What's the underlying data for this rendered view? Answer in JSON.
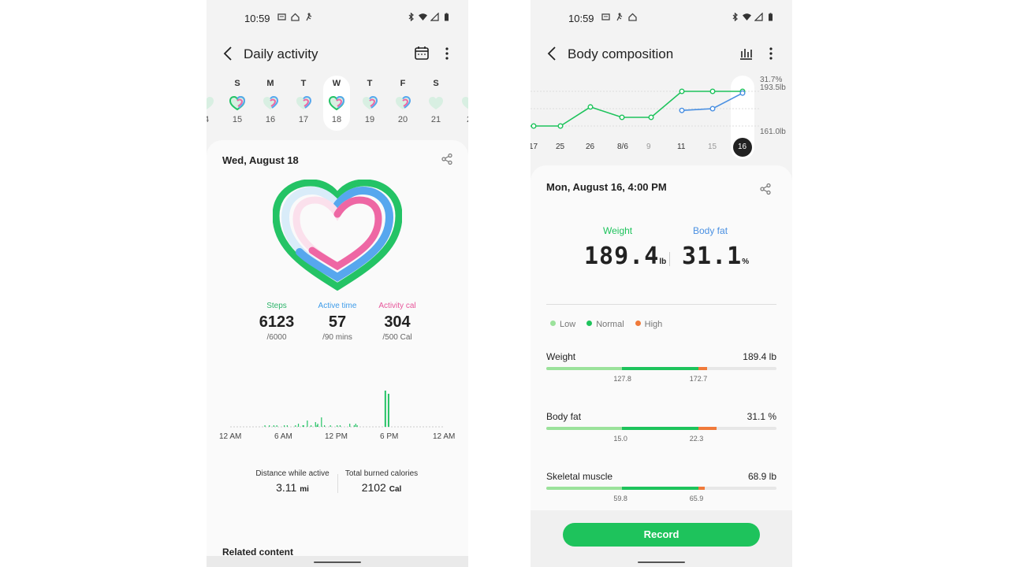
{
  "left": {
    "status": {
      "time": "10:59"
    },
    "app_bar": {
      "title": "Daily activity"
    },
    "week": [
      {
        "label": "",
        "num": "4"
      },
      {
        "label": "S",
        "num": "15"
      },
      {
        "label": "M",
        "num": "16"
      },
      {
        "label": "T",
        "num": "17"
      },
      {
        "label": "W",
        "num": "18"
      },
      {
        "label": "T",
        "num": "19"
      },
      {
        "label": "F",
        "num": "20"
      },
      {
        "label": "S",
        "num": "21"
      },
      {
        "label": "",
        "num": "2"
      }
    ],
    "date": "Wed, August 18",
    "metrics": {
      "steps": {
        "label": "Steps",
        "value": "6123",
        "goal": "/6000",
        "color": "#2db46a"
      },
      "active": {
        "label": "Active time",
        "value": "57",
        "goal": "/90 mins",
        "color": "#3d9be9"
      },
      "cal": {
        "label": "Activity cal",
        "value": "304",
        "goal": "/500 Cal",
        "color": "#e7559a"
      }
    },
    "axis": [
      "12 AM",
      "6 AM",
      "12 PM",
      "6 PM",
      "12 AM"
    ],
    "summary": {
      "distance": {
        "label": "Distance while active",
        "value": "3.11",
        "unit": "mi"
      },
      "calories": {
        "label": "Total burned calories",
        "value": "2102",
        "unit": "Cal"
      }
    },
    "related": "Related content",
    "hourly_bars": [
      0,
      0,
      0,
      0,
      0,
      0,
      0,
      0,
      0,
      0,
      0,
      0,
      0,
      0,
      0,
      0,
      0,
      0,
      0,
      0,
      0,
      0,
      0,
      0,
      0,
      0,
      0,
      0,
      0,
      0,
      0,
      0,
      0,
      0,
      0,
      0,
      0,
      0,
      0,
      0,
      0,
      0,
      0,
      0,
      0,
      0,
      1,
      0,
      0,
      0,
      0,
      0,
      1,
      0,
      0,
      0,
      0,
      0,
      1,
      0,
      0,
      0,
      1,
      0,
      0,
      0,
      0,
      0,
      0,
      0,
      0,
      0,
      1,
      0,
      0,
      0,
      1,
      0,
      0,
      0,
      0,
      0,
      0,
      0,
      0,
      0,
      0,
      1,
      0,
      0,
      0,
      2,
      0,
      0,
      0,
      0,
      0,
      1,
      1,
      0,
      0,
      0,
      0,
      4,
      0,
      0,
      0,
      0,
      1,
      0,
      0,
      0,
      0,
      0,
      3,
      0,
      1,
      2,
      0,
      0,
      0,
      0,
      6,
      0,
      0,
      0,
      1,
      0,
      0,
      0,
      0,
      0,
      0,
      0,
      1,
      0,
      0,
      0,
      0,
      0,
      0,
      0,
      0,
      1,
      0,
      0,
      0,
      1,
      0,
      0,
      0,
      0,
      0,
      0,
      0,
      0,
      0,
      0,
      0,
      0,
      2,
      0,
      0,
      0,
      0,
      0,
      1,
      0,
      2,
      0,
      1,
      0,
      0,
      0,
      0,
      0,
      0,
      0,
      0,
      0,
      0,
      0,
      0,
      0,
      0,
      0,
      0,
      0,
      0,
      0,
      0,
      0,
      0,
      0,
      0,
      0,
      0,
      0,
      0,
      0,
      0,
      0,
      0,
      0,
      0,
      0,
      0,
      0,
      0,
      0,
      0,
      0,
      0,
      0,
      0,
      0,
      0,
      0,
      0,
      0,
      0,
      0,
      0,
      0,
      0,
      0,
      0,
      0,
      0,
      0,
      0,
      0,
      0,
      0,
      0,
      0,
      0,
      0,
      0,
      0,
      0,
      0,
      0,
      0,
      0,
      0,
      0,
      0,
      0,
      0,
      0,
      0,
      0,
      0,
      0,
      0,
      0,
      0,
      0,
      0,
      0,
      0,
      0,
      0,
      0,
      0,
      0,
      0,
      0,
      0,
      0,
      0,
      0,
      0,
      0,
      0,
      0,
      0,
      0,
      0,
      0,
      0,
      0,
      0,
      0,
      0,
      0,
      0,
      0,
      0,
      0,
      0,
      0,
      0,
      0,
      0,
      0,
      0,
      0,
      0,
      0,
      0,
      0,
      0,
      0,
      0,
      0,
      0,
      0,
      0,
      0,
      0,
      0,
      0,
      0,
      0,
      0,
      0,
      0,
      0,
      0,
      0,
      0,
      0,
      0,
      0,
      0,
      0,
      0,
      0,
      0,
      0,
      0,
      0,
      0,
      0,
      0,
      0,
      0
    ],
    "peaks": [
      {
        "pos": 0.72,
        "h": 46
      },
      {
        "pos": 0.735,
        "h": 42
      }
    ]
  },
  "right": {
    "status": {
      "time": "10:59"
    },
    "app_bar": {
      "title": "Body composition"
    },
    "chart": {
      "x_labels": [
        "17",
        "25",
        "26",
        "8/6",
        "9",
        "11",
        "15",
        "16"
      ],
      "muted": [
        false,
        false,
        false,
        false,
        true,
        false,
        true,
        false
      ],
      "y_labels": [
        "31.7%",
        "193.5lb",
        "161.0lb"
      ],
      "weight_points": [
        0,
        0,
        0.55,
        0.25,
        0.25,
        1,
        1,
        1
      ],
      "fat_points": [
        null,
        null,
        null,
        null,
        null,
        0.45,
        0.5,
        0.95
      ],
      "green": "#1ec35c",
      "blue": "#4a90e2"
    },
    "date": "Mon, August 16, 4:00 PM",
    "weight": {
      "label": "Weight",
      "value": "189.4",
      "unit": "lb"
    },
    "body_fat": {
      "label": "Body fat",
      "value": "31.1",
      "unit": "%"
    },
    "legend": [
      {
        "label": "Low",
        "color": "#9be29b"
      },
      {
        "label": "Normal",
        "color": "#1ec35c"
      },
      {
        "label": "High",
        "color": "#f07a3a"
      }
    ],
    "rows": [
      {
        "name": "Weight",
        "value": "189.4 lb",
        "t1": "127.8",
        "t2": "172.7",
        "low": 0.33,
        "normal": 0.33,
        "high": 0.04
      },
      {
        "name": "Body fat",
        "value": "31.1 %",
        "t1": "15.0",
        "t2": "22.3",
        "low": 0.33,
        "normal": 0.33,
        "high": 0.08
      },
      {
        "name": "Skeletal muscle",
        "value": "68.9 lb",
        "t1": "59.8",
        "t2": "65.9",
        "low": 0.33,
        "normal": 0.33,
        "high": 0.03
      }
    ],
    "record": "Record"
  }
}
